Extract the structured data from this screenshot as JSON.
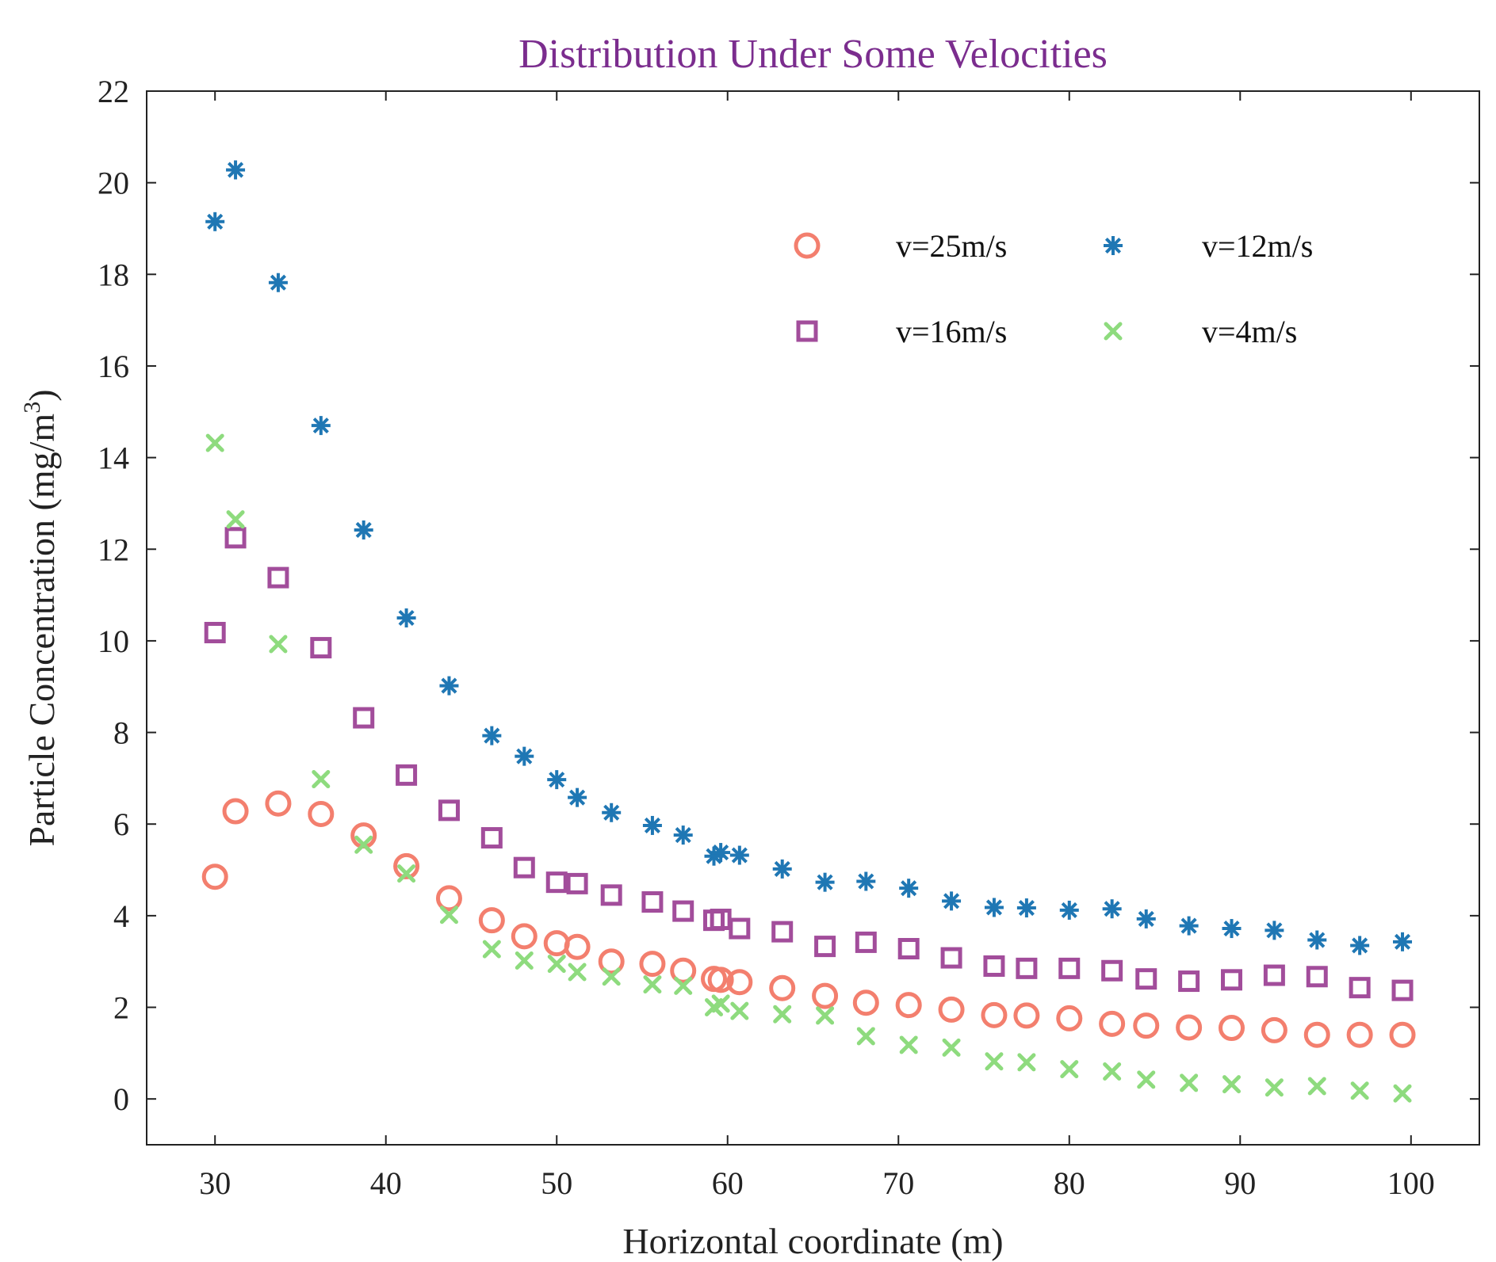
{
  "chart_data": {
    "type": "scatter",
    "title": "Distribution Under Some Velocities",
    "title_color": "#7B2D8E",
    "xlabel": "Horizontal coordinate (m)",
    "ylabel": "Particle Concentration (mg/m",
    "ylabel_superscript": "3",
    "ylabel_suffix": ")",
    "xlim": [
      26,
      104
    ],
    "ylim": [
      -1,
      22
    ],
    "xticks": [
      30,
      40,
      50,
      60,
      70,
      80,
      90,
      100
    ],
    "yticks": [
      0,
      2,
      4,
      6,
      8,
      10,
      12,
      14,
      16,
      18,
      20,
      22
    ],
    "grid": false,
    "legend_position": "top-right",
    "x": [
      30,
      31.2,
      33.7,
      36.2,
      38.7,
      41.2,
      43.7,
      46.2,
      48.1,
      50,
      51.2,
      53.2,
      55.6,
      57.4,
      59.2,
      59.6,
      60.7,
      63.2,
      65.7,
      68.1,
      70.6,
      73.1,
      75.6,
      77.5,
      80,
      82.5,
      84.5,
      87,
      89.5,
      92,
      94.5,
      97,
      99.5
    ],
    "series": [
      {
        "name": "v=25m/s",
        "marker": "circle",
        "color": "#F37F6E",
        "values": [
          4.85,
          6.28,
          6.45,
          6.22,
          5.75,
          5.08,
          4.38,
          3.9,
          3.55,
          3.4,
          3.32,
          3.0,
          2.95,
          2.8,
          2.62,
          2.6,
          2.55,
          2.42,
          2.25,
          2.1,
          2.05,
          1.95,
          1.83,
          1.82,
          1.76,
          1.64,
          1.6,
          1.56,
          1.55,
          1.5,
          1.4,
          1.4,
          1.4
        ]
      },
      {
        "name": "v=12m/s",
        "marker": "asterisk",
        "color": "#1F77B4",
        "values": [
          19.15,
          20.28,
          17.82,
          14.7,
          12.42,
          10.5,
          9.02,
          7.93,
          7.48,
          6.97,
          6.58,
          6.25,
          5.97,
          5.76,
          5.3,
          5.38,
          5.32,
          5.02,
          4.73,
          4.75,
          4.6,
          4.32,
          4.18,
          4.17,
          4.12,
          4.15,
          3.93,
          3.78,
          3.72,
          3.68,
          3.47,
          3.35,
          3.43
        ]
      },
      {
        "name": "v=16m/s",
        "marker": "square",
        "color": "#A24D9B",
        "values": [
          10.18,
          12.25,
          11.38,
          9.85,
          8.32,
          7.07,
          6.3,
          5.7,
          5.05,
          4.73,
          4.7,
          4.45,
          4.3,
          4.1,
          3.9,
          3.92,
          3.72,
          3.65,
          3.33,
          3.42,
          3.28,
          3.08,
          2.9,
          2.85,
          2.85,
          2.8,
          2.62,
          2.57,
          2.6,
          2.7,
          2.67,
          2.43,
          2.37
        ]
      },
      {
        "name": "v=4m/s",
        "marker": "x",
        "color": "#8EDB7E",
        "values": [
          14.32,
          12.65,
          9.93,
          6.98,
          5.55,
          4.92,
          4.02,
          3.27,
          3.02,
          2.95,
          2.77,
          2.67,
          2.5,
          2.47,
          2.0,
          2.08,
          1.92,
          1.85,
          1.82,
          1.37,
          1.18,
          1.12,
          0.82,
          0.8,
          0.65,
          0.6,
          0.42,
          0.35,
          0.32,
          0.25,
          0.28,
          0.18,
          0.12
        ]
      }
    ]
  }
}
